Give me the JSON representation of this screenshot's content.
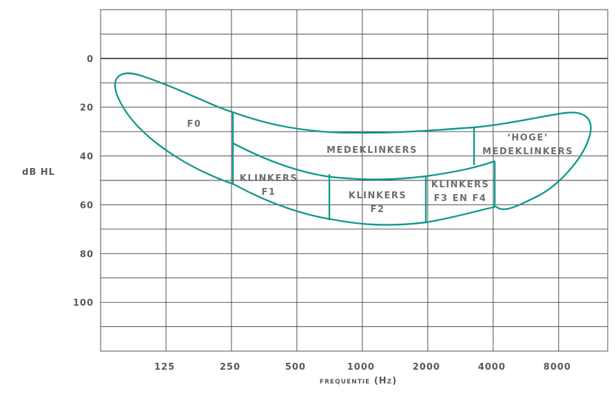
{
  "chart_data": {
    "type": "area",
    "title": "",
    "xlabel": "frequentie (Hz)",
    "ylabel": "dB HL",
    "x_scale": "log2",
    "x_ticks": [
      "125",
      "250",
      "500",
      "1000",
      "2000",
      "4000",
      "8000"
    ],
    "y_ticks": [
      "0",
      "20",
      "40",
      "60",
      "80",
      "100"
    ],
    "ylim": [
      -20,
      120
    ],
    "y_inverted": true,
    "grid": true,
    "reference_line_y": 0,
    "region_color": "#11988c",
    "regions": [
      {
        "name": "F0",
        "label_lines": [
          "F0"
        ],
        "hz_range": [
          70,
          250
        ],
        "db_range": [
          5,
          52
        ]
      },
      {
        "name": "medeklinkers",
        "label_lines": [
          "MEDEKLINKERS"
        ],
        "hz_range": [
          250,
          3500
        ],
        "db_range": [
          22,
          50
        ]
      },
      {
        "name": "hoge medeklinkers",
        "label_lines": [
          "‘HOGE’",
          "MEDEKLINKERS"
        ],
        "hz_range": [
          3500,
          10000
        ],
        "db_range": [
          23,
          45
        ]
      },
      {
        "name": "klinkers F1",
        "label_lines": [
          "KLINKERS",
          "F1"
        ],
        "hz_range": [
          250,
          700
        ],
        "db_range": [
          35,
          66
        ]
      },
      {
        "name": "klinkers F2",
        "label_lines": [
          "KLINKERS",
          "F2"
        ],
        "hz_range": [
          700,
          2000
        ],
        "db_range": [
          48,
          68
        ]
      },
      {
        "name": "klinkers F3 en F4",
        "label_lines": [
          "KLINKERS",
          "F3 EN F4"
        ],
        "hz_range": [
          2000,
          4200
        ],
        "db_range": [
          42,
          67
        ]
      }
    ]
  }
}
